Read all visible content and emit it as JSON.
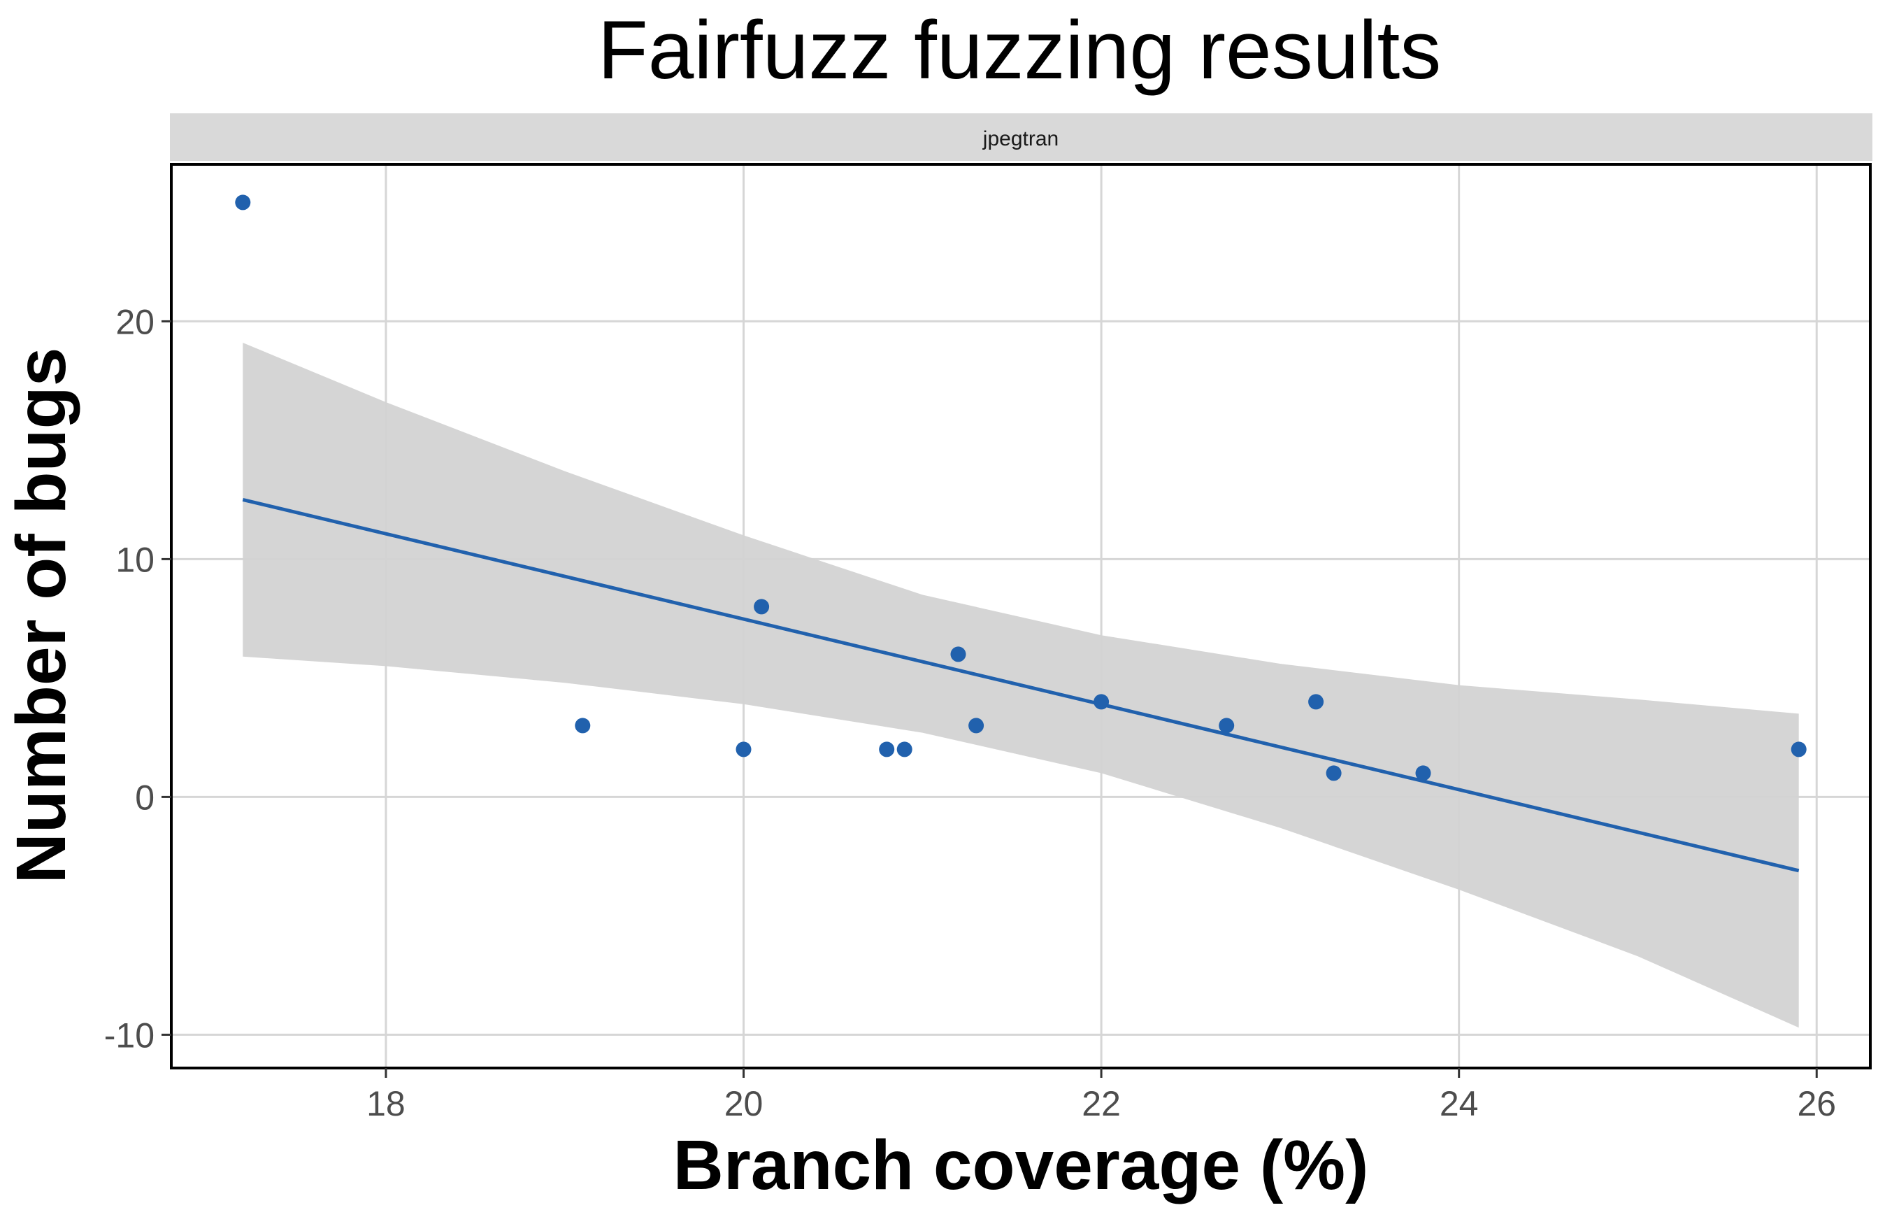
{
  "chart_data": {
    "type": "scatter",
    "title": "Fairfuzz fuzzing results",
    "facet_label": "jpegtran",
    "xlabel": "Branch coverage (%)",
    "ylabel": "Number of bugs",
    "xlim": [
      16.8,
      26.3
    ],
    "ylim": [
      -11.4,
      26.6
    ],
    "x_ticks": [
      18,
      20,
      22,
      24,
      26
    ],
    "x_tick_labels": [
      "18",
      "20",
      "22",
      "24",
      "26"
    ],
    "y_ticks": [
      -10,
      0,
      10,
      20
    ],
    "y_tick_labels": [
      "-10",
      "0",
      "10",
      "20"
    ],
    "grid": true,
    "legend": "none",
    "series": [
      {
        "points": [
          {
            "x": 17.2,
            "y": 25
          },
          {
            "x": 19.1,
            "y": 3
          },
          {
            "x": 20.0,
            "y": 2
          },
          {
            "x": 20.1,
            "y": 8
          },
          {
            "x": 20.8,
            "y": 2
          },
          {
            "x": 20.9,
            "y": 2
          },
          {
            "x": 21.2,
            "y": 6
          },
          {
            "x": 21.3,
            "y": 3
          },
          {
            "x": 22.0,
            "y": 4
          },
          {
            "x": 22.7,
            "y": 3
          },
          {
            "x": 23.2,
            "y": 4
          },
          {
            "x": 23.3,
            "y": 1
          },
          {
            "x": 23.8,
            "y": 1
          },
          {
            "x": 25.9,
            "y": 2
          }
        ]
      }
    ],
    "trend_line": {
      "method": "linear",
      "points": [
        {
          "x": 17.2,
          "y": 12.5
        },
        {
          "x": 25.9,
          "y": -3.1
        }
      ]
    },
    "confidence_band": [
      {
        "x": 17.2,
        "lower": 5.9,
        "upper": 19.1
      },
      {
        "x": 18.0,
        "lower": 5.5,
        "upper": 16.6
      },
      {
        "x": 19.0,
        "lower": 4.8,
        "upper": 13.7
      },
      {
        "x": 20.0,
        "lower": 3.9,
        "upper": 11.0
      },
      {
        "x": 21.0,
        "lower": 2.7,
        "upper": 8.5
      },
      {
        "x": 22.0,
        "lower": 1.0,
        "upper": 6.8
      },
      {
        "x": 23.0,
        "lower": -1.3,
        "upper": 5.6
      },
      {
        "x": 24.0,
        "lower": -3.9,
        "upper": 4.7
      },
      {
        "x": 25.0,
        "lower": -6.7,
        "upper": 4.1
      },
      {
        "x": 25.9,
        "lower": -9.7,
        "upper": 3.5
      }
    ],
    "colors": {
      "points": "#2161ad",
      "line": "#2161ad",
      "band": "#d3d3d3",
      "grid": "#d6d6d6",
      "strip": "#d9d9d9",
      "panel_border": "#000000"
    }
  }
}
